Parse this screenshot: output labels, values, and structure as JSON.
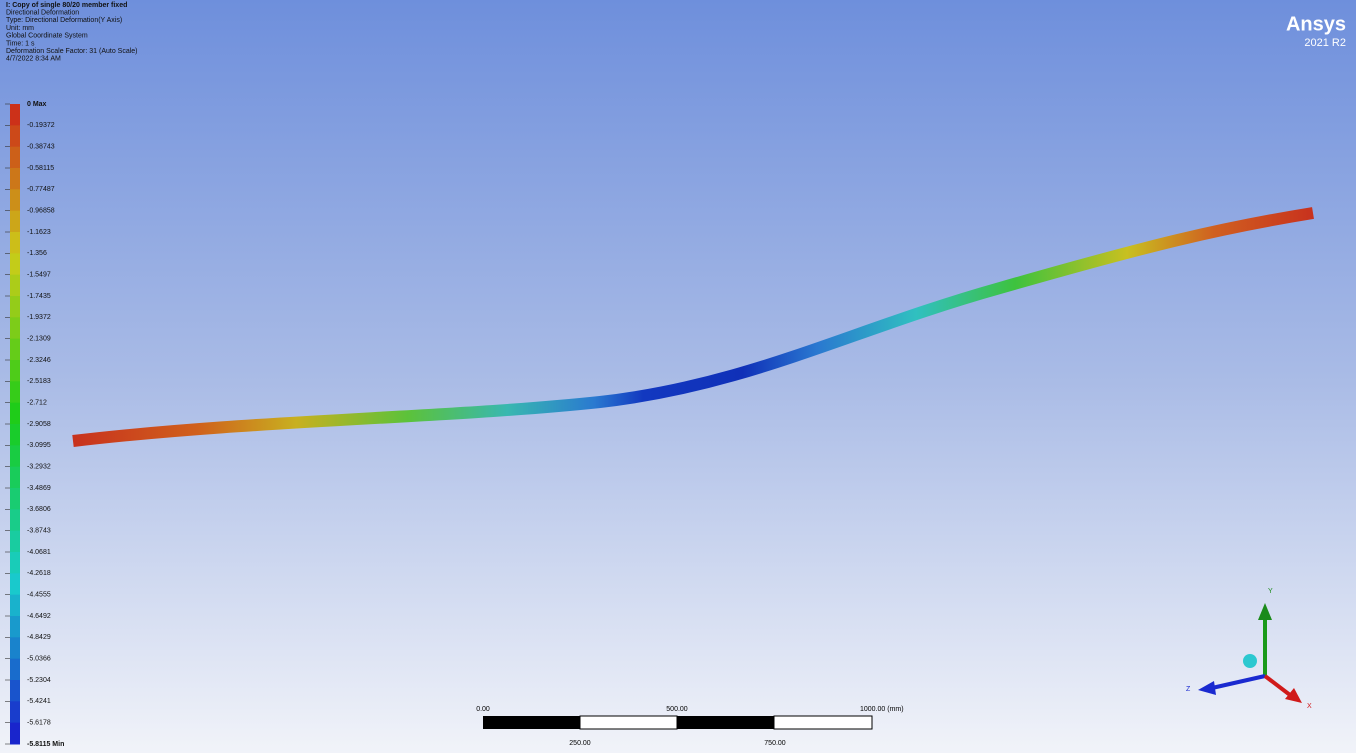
{
  "header": {
    "lines": [
      "I: Copy of single 80/20 member fixed",
      "Directional Deformation",
      "Type: Directional Deformation(Y Axis)",
      "Unit: mm",
      "Global Coordinate System",
      "Time: 1 s",
      "Deformation Scale Factor: 31 (Auto Scale)",
      "4/7/2022 8:34 AM"
    ]
  },
  "logo": {
    "brand": "Ansys",
    "version": "2021 R2"
  },
  "legend": {
    "labels": [
      "0 Max",
      "-0.19372",
      "-0.38743",
      "-0.58115",
      "-0.77487",
      "-0.96858",
      "-1.1623",
      "-1.356",
      "-1.5497",
      "-1.7435",
      "-1.9372",
      "-2.1309",
      "-2.3246",
      "-2.5183",
      "-2.712",
      "-2.9058",
      "-3.0995",
      "-3.2932",
      "-3.4869",
      "-3.6806",
      "-3.8743",
      "-4.0681",
      "-4.2618",
      "-4.4555",
      "-4.6492",
      "-4.8429",
      "-5.0366",
      "-5.2304",
      "-5.4241",
      "-5.6178",
      "-5.8115 Min"
    ]
  },
  "scale_bar": {
    "top": [
      "0.00",
      "500.00",
      "1000.00 (mm)"
    ],
    "bottom": [
      "250.00",
      "750.00"
    ]
  },
  "triad": {
    "y": "Y",
    "z": "Z",
    "x": "X"
  }
}
